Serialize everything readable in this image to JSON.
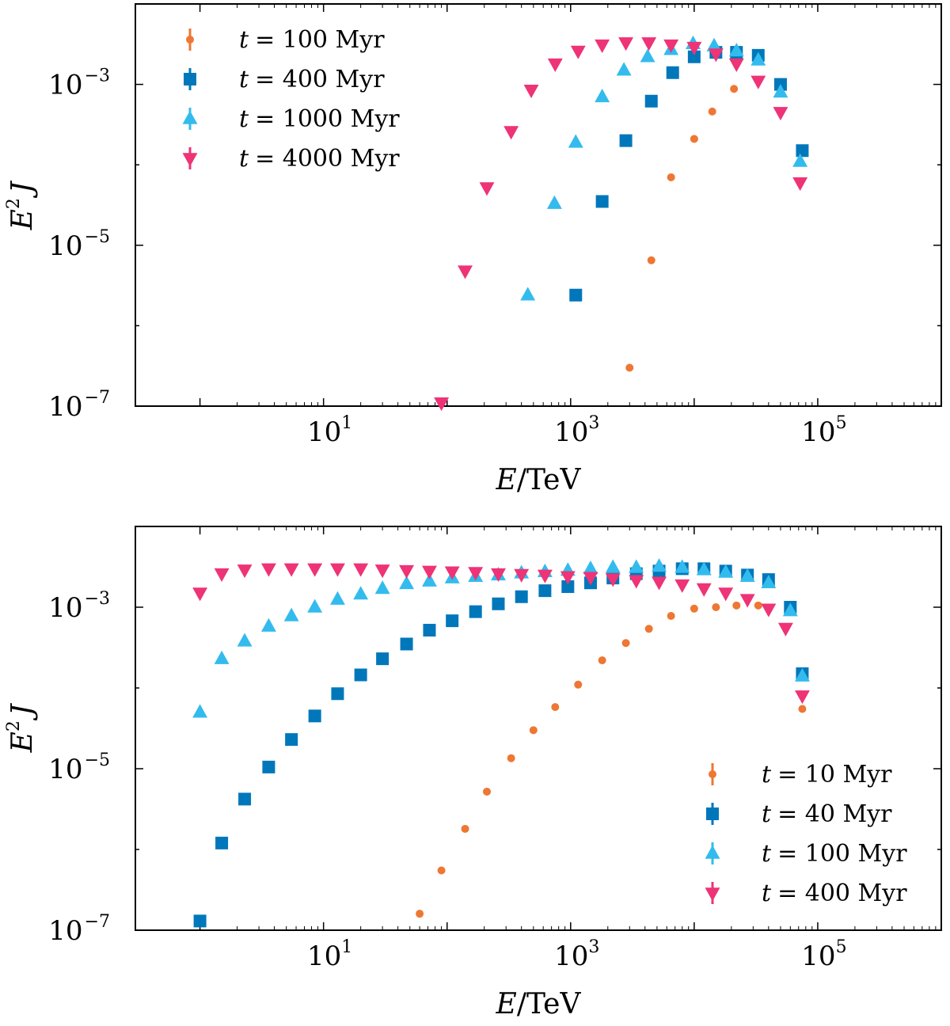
{
  "chart_data": [
    {
      "type": "scatter",
      "xscale": "log",
      "yscale": "log",
      "xlabel_main": "E",
      "xlabel_unit": "/TeV",
      "ylabel_base": "E",
      "ylabel_power": "2",
      "ylabel_var": "J",
      "xlim": [
        0.3,
        1000000
      ],
      "ylim": [
        1e-07,
        0.01
      ],
      "xticks": [
        {
          "base": "10",
          "exp": "1",
          "value": 10
        },
        {
          "base": "10",
          "exp": "3",
          "value": 1000
        },
        {
          "base": "10",
          "exp": "5",
          "value": 100000
        }
      ],
      "yticks": [
        {
          "base": "10",
          "exp": "−3",
          "value": 0.001
        },
        {
          "base": "10",
          "exp": "−5",
          "value": 1e-05
        },
        {
          "base": "10",
          "exp": "−7",
          "value": 1e-07
        }
      ],
      "legend_position": "upper-left",
      "series": [
        {
          "name": "t = 100 Myr",
          "label_var": "t",
          "label_eq": "= 100 Myr",
          "marker": "circle",
          "color": "#EE7733",
          "points": [
            [
              3000,
              3e-07
            ],
            [
              4500,
              6.5e-06
            ],
            [
              6500,
              7e-05
            ],
            [
              10000,
              0.00021
            ],
            [
              14000,
              0.00046
            ],
            [
              21000,
              0.00088
            ]
          ]
        },
        {
          "name": "t = 400 Myr",
          "label_var": "t",
          "label_eq": "= 400 Myr",
          "marker": "square",
          "color": "#0077BB",
          "points": [
            [
              1100,
              2.4e-06
            ],
            [
              1800,
              3.5e-05
            ],
            [
              2800,
              0.0002
            ],
            [
              4500,
              0.00062
            ],
            [
              6700,
              0.0014
            ],
            [
              10000,
              0.0022
            ],
            [
              15000,
              0.0025
            ],
            [
              22000,
              0.0025
            ],
            [
              33000,
              0.0023
            ],
            [
              50000,
              0.001
            ],
            [
              75000,
              0.00015
            ]
          ]
        },
        {
          "name": "t = 1000 Myr",
          "label_var": "t",
          "label_eq": "= 1000 Myr",
          "marker": "triangle-up",
          "color": "#33BBEE",
          "points": [
            [
              450,
              2.4e-06
            ],
            [
              740,
              3.3e-05
            ],
            [
              1100,
              0.00019
            ],
            [
              1800,
              0.0007
            ],
            [
              2700,
              0.0015
            ],
            [
              4200,
              0.0022
            ],
            [
              6500,
              0.0027
            ],
            [
              9800,
              0.0032
            ],
            [
              14500,
              0.003
            ],
            [
              22000,
              0.0026
            ],
            [
              33000,
              0.002
            ],
            [
              50000,
              0.0008
            ],
            [
              72000,
              0.00011
            ]
          ]
        },
        {
          "name": "t = 4000 Myr",
          "label_var": "t",
          "label_eq": "= 4000 Myr",
          "marker": "triangle-down",
          "color": "#EE3377",
          "points": [
            [
              90,
              1.1e-07
            ],
            [
              140,
              4.8e-06
            ],
            [
              210,
              5.2e-05
            ],
            [
              330,
              0.00026
            ],
            [
              480,
              0.00085
            ],
            [
              750,
              0.0018
            ],
            [
              1150,
              0.0026
            ],
            [
              1800,
              0.0031
            ],
            [
              2800,
              0.0033
            ],
            [
              4300,
              0.0033
            ],
            [
              6500,
              0.0031
            ],
            [
              10000,
              0.0029
            ],
            [
              15000,
              0.0024
            ],
            [
              22000,
              0.0018
            ],
            [
              33000,
              0.0011
            ],
            [
              50000,
              0.00045
            ],
            [
              72000,
              6e-05
            ]
          ]
        }
      ]
    },
    {
      "type": "scatter",
      "xscale": "log",
      "yscale": "log",
      "xlabel_main": "E",
      "xlabel_unit": "/TeV",
      "ylabel_base": "E",
      "ylabel_power": "2",
      "ylabel_var": "J",
      "xlim": [
        0.3,
        1000000
      ],
      "ylim": [
        1e-07,
        0.01
      ],
      "xticks": [
        {
          "base": "10",
          "exp": "1",
          "value": 10
        },
        {
          "base": "10",
          "exp": "3",
          "value": 1000
        },
        {
          "base": "10",
          "exp": "5",
          "value": 100000
        }
      ],
      "yticks": [
        {
          "base": "10",
          "exp": "−3",
          "value": 0.001
        },
        {
          "base": "10",
          "exp": "−5",
          "value": 1e-05
        },
        {
          "base": "10",
          "exp": "−7",
          "value": 1e-07
        }
      ],
      "legend_position": "lower-right",
      "series": [
        {
          "name": "t = 10 Myr",
          "label_var": "t",
          "label_eq": "= 10 Myr",
          "marker": "circle",
          "color": "#EE7733",
          "points": [
            [
              60,
              1.6e-07
            ],
            [
              90,
              5.5e-07
            ],
            [
              140,
              1.8e-06
            ],
            [
              210,
              5.2e-06
            ],
            [
              330,
              1.35e-05
            ],
            [
              500,
              3e-05
            ],
            [
              750,
              5.8e-05
            ],
            [
              1150,
              0.00011
            ],
            [
              1800,
              0.00022
            ],
            [
              2800,
              0.00036
            ],
            [
              4300,
              0.00054
            ],
            [
              6500,
              0.00078
            ],
            [
              10000,
              0.00096
            ],
            [
              15000,
              0.001
            ],
            [
              22000,
              0.00105
            ],
            [
              33000,
              0.00105
            ],
            [
              75000,
              5.5e-05
            ]
          ]
        },
        {
          "name": "t = 40 Myr",
          "label_var": "t",
          "label_eq": "= 40 Myr",
          "marker": "square",
          "color": "#0077BB",
          "points": [
            [
              1,
              1.3e-07
            ],
            [
              1.5,
              1.2e-06
            ],
            [
              2.3,
              4.2e-06
            ],
            [
              3.6,
              1.05e-05
            ],
            [
              5.5,
              2.3e-05
            ],
            [
              8.5,
              4.5e-05
            ],
            [
              13,
              8.5e-05
            ],
            [
              20,
              0.000145
            ],
            [
              30,
              0.00023
            ],
            [
              47,
              0.00035
            ],
            [
              72,
              0.00052
            ],
            [
              110,
              0.00068
            ],
            [
              170,
              0.00088
            ],
            [
              260,
              0.0011
            ],
            [
              400,
              0.00135
            ],
            [
              620,
              0.0016
            ],
            [
              950,
              0.0018
            ],
            [
              1450,
              0.002
            ],
            [
              2200,
              0.0023
            ],
            [
              3400,
              0.0026
            ],
            [
              5200,
              0.0028
            ],
            [
              8000,
              0.003
            ],
            [
              12000,
              0.003
            ],
            [
              18000,
              0.0028
            ],
            [
              27000,
              0.0025
            ],
            [
              40000,
              0.0022
            ],
            [
              60000,
              0.001
            ],
            [
              75000,
              0.00015
            ]
          ]
        },
        {
          "name": "t = 100 Myr",
          "label_var": "t",
          "label_eq": "= 100 Myr",
          "marker": "triangle-up",
          "color": "#33BBEE",
          "points": [
            [
              1,
              5e-05
            ],
            [
              1.5,
              0.00023
            ],
            [
              2.3,
              0.00038
            ],
            [
              3.6,
              0.00058
            ],
            [
              5.5,
              0.00078
            ],
            [
              8.5,
              0.001
            ],
            [
              13,
              0.00125
            ],
            [
              20,
              0.00145
            ],
            [
              30,
              0.0017
            ],
            [
              47,
              0.00195
            ],
            [
              72,
              0.0021
            ],
            [
              110,
              0.0023
            ],
            [
              170,
              0.0024
            ],
            [
              260,
              0.0025
            ],
            [
              400,
              0.00265
            ],
            [
              620,
              0.00275
            ],
            [
              950,
              0.00285
            ],
            [
              1450,
              0.003
            ],
            [
              2200,
              0.0031
            ],
            [
              3400,
              0.0031
            ],
            [
              5200,
              0.0032
            ],
            [
              8000,
              0.0031
            ],
            [
              12000,
              0.0029
            ],
            [
              18000,
              0.0027
            ],
            [
              27000,
              0.0024
            ],
            [
              40000,
              0.002
            ],
            [
              60000,
              0.0009
            ],
            [
              75000,
              0.00014
            ]
          ]
        },
        {
          "name": "t = 400 Myr",
          "label_var": "t",
          "label_eq": "= 400 Myr",
          "marker": "triangle-down",
          "color": "#EE3377",
          "points": [
            [
              1,
              0.0015
            ],
            [
              1.5,
              0.0026
            ],
            [
              2.3,
              0.0029
            ],
            [
              3.6,
              0.003
            ],
            [
              5.5,
              0.003
            ],
            [
              8.5,
              0.003
            ],
            [
              13,
              0.003
            ],
            [
              20,
              0.003
            ],
            [
              30,
              0.0029
            ],
            [
              47,
              0.00285
            ],
            [
              72,
              0.0028
            ],
            [
              110,
              0.00275
            ],
            [
              170,
              0.0027
            ],
            [
              260,
              0.0026
            ],
            [
              400,
              0.00255
            ],
            [
              620,
              0.0025
            ],
            [
              950,
              0.0024
            ],
            [
              1450,
              0.00235
            ],
            [
              2200,
              0.00225
            ],
            [
              3400,
              0.00215
            ],
            [
              5200,
              0.00205
            ],
            [
              8000,
              0.0019
            ],
            [
              12000,
              0.0017
            ],
            [
              18000,
              0.0015
            ],
            [
              27000,
              0.00125
            ],
            [
              40000,
              0.00095
            ],
            [
              55000,
              0.00055
            ],
            [
              75000,
              8e-05
            ]
          ]
        }
      ]
    }
  ]
}
